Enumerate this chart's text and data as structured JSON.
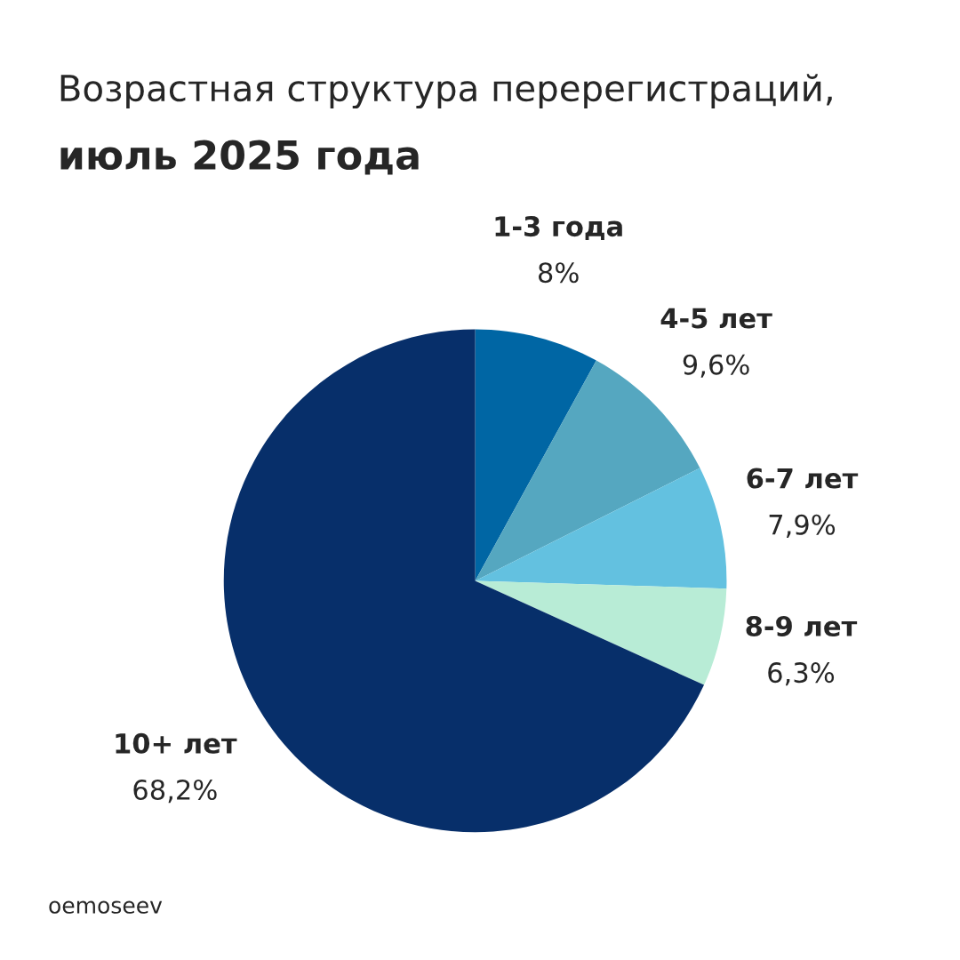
{
  "chart_data": {
    "type": "pie",
    "title": "Возрастная структура перерегистраций,",
    "subtitle": "июль 2025 года",
    "categories": [
      "1-3 года",
      "4-5 лет",
      "6-7 лет",
      "8-9 лет",
      "10+ лет"
    ],
    "values": [
      8,
      9.6,
      7.9,
      6.3,
      68.2
    ],
    "colors": [
      "#0066a4",
      "#55a7c0",
      "#63c1e0",
      "#b8ecd6",
      "#072f6a"
    ],
    "value_labels": [
      "8%",
      "9,6%",
      "7,9%",
      "6,3%",
      "68,2%"
    ],
    "annotations": [
      "oemoseev"
    ],
    "legend": false
  }
}
